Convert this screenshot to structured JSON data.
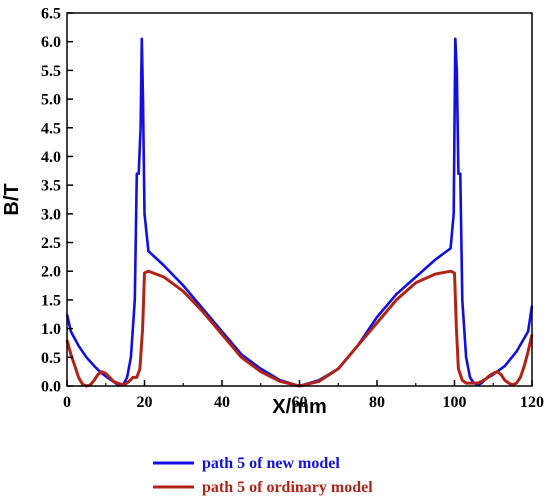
{
  "chart_data": {
    "type": "line",
    "xlabel": "X/mm",
    "ylabel": "B/T",
    "xlim": [
      0,
      120
    ],
    "ylim": [
      0,
      6.5
    ],
    "xticks": [
      "0",
      "20",
      "40",
      "60",
      "80",
      "100",
      "120"
    ],
    "yticks": [
      "0.0",
      "0.5",
      "1.0",
      "1.5",
      "2.0",
      "2.5",
      "3.0",
      "3.5",
      "4.0",
      "4.5",
      "5.0",
      "5.5",
      "6.0",
      "6.5"
    ],
    "grid": false,
    "legend_position": "bottom",
    "series": [
      {
        "name": "path 5 of  new model",
        "color": "#1010e0",
        "x": [
          0,
          1,
          3,
          5,
          7,
          9,
          11,
          12.5,
          13.5,
          14.5,
          15.5,
          16.5,
          17.5,
          18,
          18.5,
          19,
          19.3,
          19.6,
          20,
          21,
          25,
          30,
          35,
          40,
          45,
          50,
          55,
          60,
          65,
          70,
          75,
          80,
          85,
          90,
          95,
          99,
          99.8,
          100.2,
          100.6,
          101,
          101.5,
          102,
          103,
          104,
          105,
          106,
          107,
          108,
          110,
          113,
          116,
          119,
          120
        ],
        "y": [
          1.25,
          0.95,
          0.7,
          0.5,
          0.35,
          0.22,
          0.12,
          0.05,
          0.01,
          0.02,
          0.15,
          0.5,
          1.5,
          3.7,
          3.7,
          4.5,
          6.05,
          5.0,
          3.0,
          2.35,
          2.1,
          1.75,
          1.35,
          0.95,
          0.55,
          0.3,
          0.1,
          0.0,
          0.1,
          0.3,
          0.7,
          1.2,
          1.6,
          1.9,
          2.2,
          2.4,
          3.0,
          6.05,
          5.5,
          3.7,
          3.7,
          1.5,
          0.5,
          0.15,
          0.05,
          0.02,
          0.05,
          0.12,
          0.2,
          0.35,
          0.6,
          0.95,
          1.4
        ]
      },
      {
        "name": "path 5 of  ordinary model",
        "color": "#b02418",
        "x": [
          0,
          1,
          2,
          3,
          4,
          5,
          6,
          7,
          8,
          9,
          10,
          11,
          12,
          13,
          14,
          15,
          16,
          17,
          18,
          18.8,
          19.5,
          20,
          21,
          25,
          30,
          35,
          40,
          45,
          50,
          55,
          60,
          65,
          70,
          75,
          80,
          85,
          90,
          95,
          99,
          100,
          100.5,
          101,
          102,
          103,
          104,
          105,
          106,
          107,
          108,
          109,
          110,
          111,
          112,
          113,
          114,
          115,
          116,
          117,
          118,
          119,
          120
        ],
        "y": [
          0.8,
          0.55,
          0.35,
          0.15,
          0.03,
          0.0,
          0.02,
          0.1,
          0.2,
          0.25,
          0.22,
          0.15,
          0.08,
          0.05,
          0.03,
          0.03,
          0.08,
          0.15,
          0.15,
          0.3,
          1.0,
          1.97,
          2.0,
          1.9,
          1.65,
          1.3,
          0.9,
          0.5,
          0.25,
          0.08,
          0.0,
          0.08,
          0.3,
          0.7,
          1.1,
          1.5,
          1.8,
          1.95,
          2.0,
          1.97,
          1.0,
          0.3,
          0.1,
          0.05,
          0.05,
          0.05,
          0.05,
          0.08,
          0.12,
          0.18,
          0.22,
          0.25,
          0.2,
          0.1,
          0.05,
          0.02,
          0.05,
          0.15,
          0.35,
          0.6,
          0.9
        ]
      }
    ]
  }
}
